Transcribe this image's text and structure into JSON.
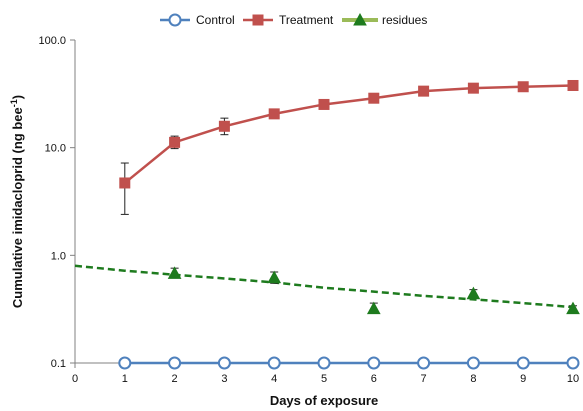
{
  "chart_data": {
    "type": "line",
    "xlabel": "Days of exposure",
    "ylabel_main": "Cumulative imidacloprid (ng bee",
    "ylabel_sup": "-1",
    "ylabel_close": ")",
    "xlim": [
      0,
      10
    ],
    "ylim": [
      0.1,
      100
    ],
    "yscale": "log",
    "xticks": [
      0,
      1,
      2,
      3,
      4,
      5,
      6,
      7,
      8,
      9,
      10
    ],
    "yticks": [
      {
        "value": 0.1,
        "label": "0.1"
      },
      {
        "value": 1,
        "label": "1.0"
      },
      {
        "value": 10,
        "label": "10.0"
      },
      {
        "value": 100,
        "label": "100.0"
      }
    ],
    "grid": false,
    "legend_position": "top-center",
    "series": [
      {
        "name": "Control",
        "color": "#4f81bd",
        "marker": "circle",
        "line": "solid",
        "x": [
          1,
          2,
          3,
          4,
          5,
          6,
          7,
          8,
          9,
          10
        ],
        "y": [
          0.1,
          0.1,
          0.1,
          0.1,
          0.1,
          0.1,
          0.1,
          0.1,
          0.1,
          0.1
        ]
      },
      {
        "name": "Treatment",
        "color": "#c0504d",
        "marker": "square",
        "line": "solid",
        "x": [
          1,
          2,
          3,
          4,
          5,
          6,
          7,
          8,
          9,
          10
        ],
        "y": [
          4.7,
          11.2,
          15.8,
          20.6,
          25.2,
          28.8,
          33.5,
          35.7,
          36.8,
          37.8
        ],
        "err_low": [
          2.4,
          9.8,
          13.2,
          19.0,
          24.0,
          27.5,
          32.0,
          34.5,
          35.7,
          36.8
        ],
        "err_high": [
          7.2,
          12.8,
          18.8,
          22.5,
          26.5,
          30.2,
          35.0,
          36.9,
          37.9,
          39.0
        ]
      },
      {
        "name": "residues",
        "color": "#1e7b1e",
        "marker": "triangle",
        "line": "none",
        "x": [
          2,
          4,
          6,
          8,
          10
        ],
        "y": [
          0.68,
          0.62,
          0.32,
          0.44,
          0.32
        ],
        "err_low": [
          0.62,
          0.55,
          0.29,
          0.41,
          0.3
        ],
        "err_high": [
          0.76,
          0.7,
          0.36,
          0.48,
          0.34
        ]
      }
    ],
    "trendline": {
      "legend_color": "#9bbb59",
      "color": "#1e7b1e",
      "style": "dashed",
      "x": [
        0,
        1,
        2,
        3,
        4,
        5,
        6,
        7,
        8,
        9,
        10
      ],
      "y": [
        0.8,
        0.72,
        0.66,
        0.61,
        0.56,
        0.5,
        0.46,
        0.42,
        0.39,
        0.36,
        0.33
      ]
    }
  }
}
